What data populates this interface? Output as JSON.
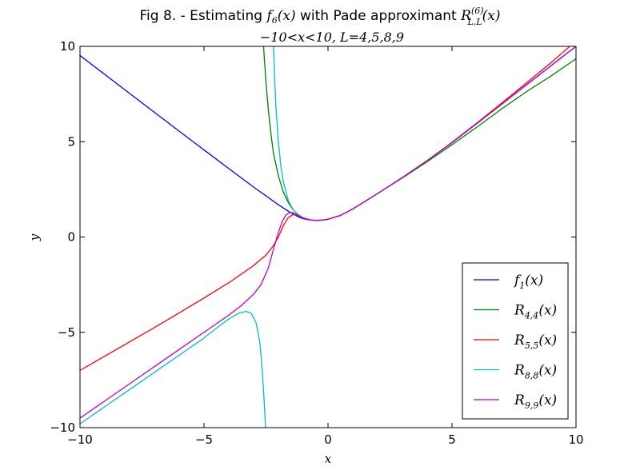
{
  "chart_data": {
    "type": "line",
    "title": "Fig 8. - Estimating f_6(x) with Pade approximant R_{L,L}^{(6)}(x)",
    "title_parts": {
      "prefix": "Fig 8. - Estimating ",
      "f": "f",
      "f_sub": "6",
      "f_arg": "(x)",
      "middle": " with Pade approximant ",
      "R": "R",
      "R_sup": "(6)",
      "R_sub": "L,L",
      "R_arg": "(x)"
    },
    "subtitle": "−10<x<10, L=4,5,8,9",
    "xlabel": "x",
    "ylabel": "y",
    "xlim": [
      -10,
      10
    ],
    "ylim": [
      -10,
      10
    ],
    "xticks": [
      -10,
      -5,
      0,
      5,
      10
    ],
    "yticks": [
      -10,
      -5,
      0,
      5,
      10
    ],
    "xtick_labels": [
      "−10",
      "−5",
      "0",
      "5",
      "10"
    ],
    "ytick_labels": [
      "−10",
      "−5",
      "0",
      "5",
      "10"
    ],
    "legend_position": "lower-right",
    "series": [
      {
        "name": "f_1(x)",
        "label_main": "f",
        "label_sub": "1",
        "label_arg": "(x)",
        "color": "#0000ff",
        "points": [
          [
            -10,
            9.52
          ],
          [
            -8,
            7.53
          ],
          [
            -6,
            5.55
          ],
          [
            -4,
            3.59
          ],
          [
            -3,
            2.62
          ],
          [
            -2,
            1.69
          ],
          [
            -1.5,
            1.27
          ],
          [
            -1.2,
            1.06
          ],
          [
            -1,
            0.96
          ],
          [
            -0.7,
            0.885
          ],
          [
            -0.45,
            0.87
          ],
          [
            -0.2,
            0.89
          ],
          [
            0,
            0.93
          ],
          [
            0.5,
            1.13
          ],
          [
            1,
            1.47
          ],
          [
            2,
            2.28
          ],
          [
            3,
            3.12
          ],
          [
            4,
            4.01
          ],
          [
            5,
            4.95
          ],
          [
            6,
            5.95
          ],
          [
            7,
            6.96
          ],
          [
            8,
            7.98
          ],
          [
            9,
            8.99
          ],
          [
            9.4,
            9.4
          ],
          [
            9.8,
            9.8
          ],
          [
            10,
            10.0
          ]
        ]
      },
      {
        "name": "R_4,4(x)",
        "label_main": "R",
        "label_sub": "4,4",
        "label_arg": "(x)",
        "color": "#008000",
        "points": [
          [
            -2.6,
            10.0
          ],
          [
            -2.5,
            8.1
          ],
          [
            -2.4,
            6.6
          ],
          [
            -2.3,
            5.4
          ],
          [
            -2.2,
            4.4
          ],
          [
            -2.0,
            3.2
          ],
          [
            -1.8,
            2.35
          ],
          [
            -1.6,
            1.8
          ],
          [
            -1.4,
            1.42
          ],
          [
            -1.2,
            1.17
          ],
          [
            -1.0,
            1.0
          ],
          [
            -0.7,
            0.89
          ],
          [
            -0.45,
            0.87
          ],
          [
            -0.2,
            0.89
          ],
          [
            0,
            0.93
          ],
          [
            0.5,
            1.13
          ],
          [
            1,
            1.47
          ],
          [
            2,
            2.28
          ],
          [
            3,
            3.1
          ],
          [
            4,
            3.95
          ],
          [
            5,
            4.84
          ],
          [
            6,
            5.76
          ],
          [
            7,
            6.72
          ],
          [
            8,
            7.62
          ],
          [
            9,
            8.45
          ],
          [
            10,
            9.35
          ]
        ]
      },
      {
        "name": "R_5,5(x)",
        "label_main": "R",
        "label_sub": "5,5",
        "label_arg": "(x)",
        "color": "#ff0000",
        "points": [
          [
            -10,
            -7.0
          ],
          [
            -9,
            -6.25
          ],
          [
            -8,
            -5.5
          ],
          [
            -7,
            -4.75
          ],
          [
            -6,
            -3.98
          ],
          [
            -5,
            -3.2
          ],
          [
            -4,
            -2.4
          ],
          [
            -3,
            -1.5
          ],
          [
            -2.5,
            -0.95
          ],
          [
            -2.2,
            -0.45
          ],
          [
            -2.0,
            0.0
          ],
          [
            -1.8,
            0.6
          ],
          [
            -1.6,
            1.02
          ],
          [
            -1.4,
            1.18
          ],
          [
            -1.2,
            1.12
          ],
          [
            -1.0,
            1.0
          ],
          [
            -0.7,
            0.89
          ],
          [
            -0.45,
            0.87
          ],
          [
            -0.2,
            0.89
          ],
          [
            0,
            0.93
          ],
          [
            0.5,
            1.13
          ],
          [
            1,
            1.47
          ],
          [
            2,
            2.28
          ],
          [
            3,
            3.12
          ],
          [
            4,
            4.01
          ],
          [
            5,
            4.97
          ],
          [
            6,
            5.98
          ],
          [
            7,
            7.02
          ],
          [
            8,
            8.08
          ],
          [
            9,
            9.15
          ],
          [
            9.5,
            9.72
          ],
          [
            9.75,
            10.0
          ]
        ]
      },
      {
        "name": "R_8,8(x)",
        "label_main": "R",
        "label_sub": "8,8",
        "label_arg": "(x)",
        "color": "#00bfbf",
        "points": [
          [
            -2.2,
            10.0
          ],
          [
            -2.15,
            8.3
          ],
          [
            -2.1,
            6.8
          ],
          [
            -2.0,
            5.0
          ],
          [
            -1.9,
            3.7
          ],
          [
            -1.8,
            2.9
          ],
          [
            -1.6,
            1.9
          ],
          [
            -1.4,
            1.42
          ],
          [
            -1.2,
            1.15
          ],
          [
            -1.0,
            1.0
          ],
          [
            -0.7,
            0.89
          ],
          [
            -0.45,
            0.87
          ],
          [
            -0.2,
            0.89
          ],
          [
            0,
            0.93
          ],
          [
            0.5,
            1.13
          ],
          [
            1,
            1.47
          ],
          [
            2,
            2.28
          ],
          [
            3,
            3.12
          ],
          [
            4,
            4.01
          ],
          [
            5,
            4.95
          ],
          [
            6,
            5.95
          ],
          [
            7,
            6.96
          ],
          [
            8,
            7.98
          ],
          [
            9,
            8.99
          ],
          [
            9.4,
            9.4
          ],
          [
            9.8,
            9.8
          ],
          [
            10,
            10.0
          ]
        ],
        "branch2": [
          [
            -10,
            -9.8
          ],
          [
            -9,
            -8.9
          ],
          [
            -8,
            -8.0
          ],
          [
            -7,
            -7.1
          ],
          [
            -6,
            -6.2
          ],
          [
            -5,
            -5.3
          ],
          [
            -4.5,
            -4.78
          ],
          [
            -4,
            -4.3
          ],
          [
            -3.6,
            -4.0
          ],
          [
            -3.3,
            -3.9
          ],
          [
            -3.1,
            -4.0
          ],
          [
            -2.9,
            -4.5
          ],
          [
            -2.75,
            -5.5
          ],
          [
            -2.65,
            -7.0
          ],
          [
            -2.57,
            -8.7
          ],
          [
            -2.52,
            -10.0
          ]
        ]
      },
      {
        "name": "R_9,9(x)",
        "label_main": "R",
        "label_sub": "9,9",
        "label_arg": "(x)",
        "color": "#bf00bf",
        "points": [
          [
            -10,
            -9.5
          ],
          [
            -9,
            -8.6
          ],
          [
            -8,
            -7.7
          ],
          [
            -7,
            -6.8
          ],
          [
            -6,
            -5.9
          ],
          [
            -5,
            -5.0
          ],
          [
            -4,
            -4.1
          ],
          [
            -3.5,
            -3.6
          ],
          [
            -3,
            -3.0
          ],
          [
            -2.7,
            -2.5
          ],
          [
            -2.4,
            -1.6
          ],
          [
            -2.2,
            -0.65
          ],
          [
            -2.0,
            0.25
          ],
          [
            -1.85,
            0.8
          ],
          [
            -1.7,
            1.15
          ],
          [
            -1.55,
            1.28
          ],
          [
            -1.4,
            1.27
          ],
          [
            -1.2,
            1.12
          ],
          [
            -1.0,
            1.0
          ],
          [
            -0.7,
            0.89
          ],
          [
            -0.45,
            0.87
          ],
          [
            -0.2,
            0.89
          ],
          [
            0,
            0.93
          ],
          [
            0.5,
            1.13
          ],
          [
            1,
            1.47
          ],
          [
            2,
            2.28
          ],
          [
            3,
            3.12
          ],
          [
            4,
            4.01
          ],
          [
            5,
            4.95
          ],
          [
            6,
            5.95
          ],
          [
            7,
            6.96
          ],
          [
            8,
            7.98
          ],
          [
            9,
            8.99
          ],
          [
            9.4,
            9.4
          ],
          [
            9.8,
            9.8
          ],
          [
            10,
            10.0
          ]
        ]
      }
    ]
  }
}
